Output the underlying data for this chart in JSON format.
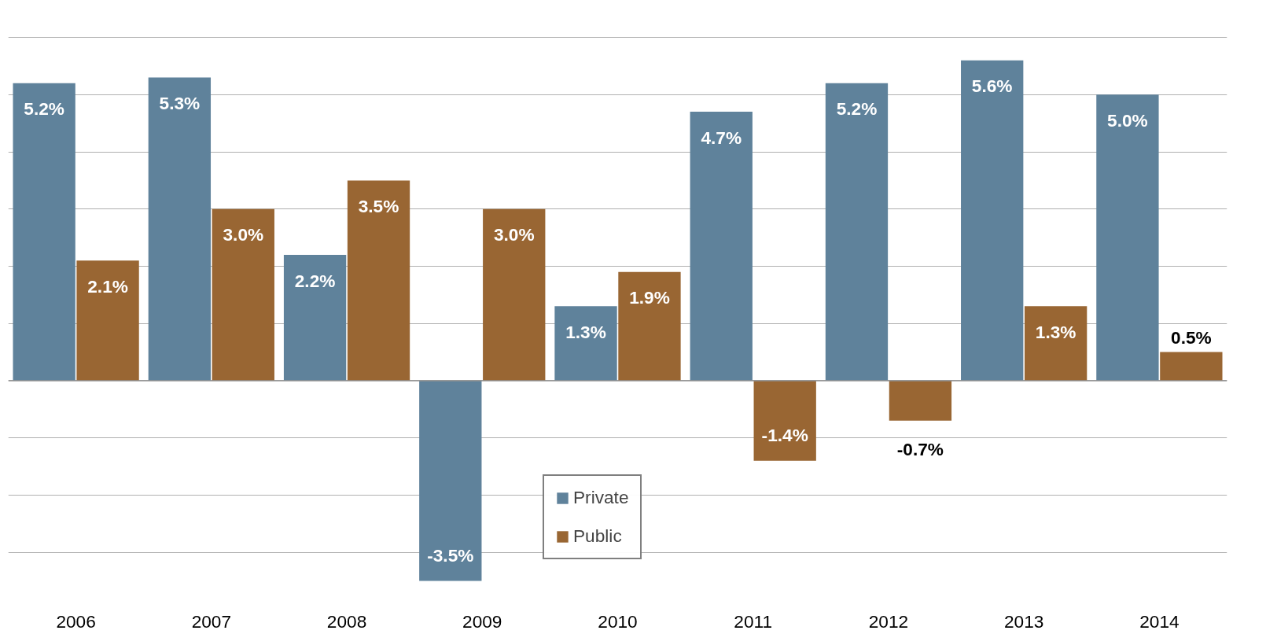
{
  "chart_data": {
    "type": "bar",
    "categories": [
      "2006",
      "2007",
      "2008",
      "2009",
      "2010",
      "2011",
      "2012",
      "2013",
      "2014"
    ],
    "series": [
      {
        "name": "Private",
        "color": "#5f829b",
        "values": [
          5.2,
          5.3,
          2.2,
          -3.5,
          1.3,
          4.7,
          5.2,
          5.6,
          5.0
        ],
        "value_labels": [
          "5.2%",
          "5.3%",
          "2.2%",
          "-3.5%",
          "1.3%",
          "4.7%",
          "5.2%",
          "5.6%",
          "5.0%"
        ]
      },
      {
        "name": "Public",
        "color": "#996633",
        "values": [
          2.1,
          3.0,
          3.5,
          3.0,
          1.9,
          -1.4,
          -0.7,
          1.3,
          0.5
        ],
        "value_labels": [
          "2.1%",
          "3.0%",
          "3.5%",
          "3.0%",
          "1.9%",
          "-1.4%",
          "-0.7%",
          "1.3%",
          "0.5%"
        ]
      }
    ],
    "tick_labels": "x",
    "grid": "y",
    "legend": "bottom"
  }
}
